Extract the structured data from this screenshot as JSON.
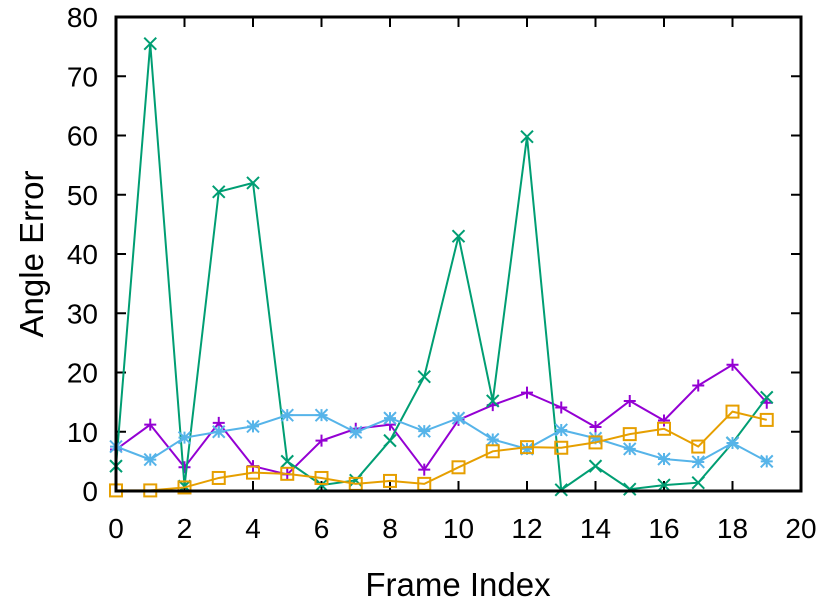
{
  "chart_data": {
    "type": "line",
    "title": "",
    "xlabel": "Frame Index",
    "ylabel": "Angle Error",
    "xlim": [
      0,
      20
    ],
    "ylim": [
      0,
      80
    ],
    "xticks": [
      0,
      2,
      4,
      6,
      8,
      10,
      12,
      14,
      16,
      18,
      20
    ],
    "yticks": [
      0,
      10,
      20,
      30,
      40,
      50,
      60,
      70,
      80
    ],
    "grid": false,
    "legend": "none",
    "x": [
      0,
      1,
      2,
      3,
      4,
      5,
      6,
      7,
      8,
      9,
      10,
      11,
      12,
      13,
      14,
      15,
      16,
      17,
      18,
      19
    ],
    "series": [
      {
        "color": "#9400d3",
        "marker": "plus",
        "values": [
          7.0,
          11.2,
          4.0,
          11.5,
          4.2,
          2.8,
          8.5,
          10.5,
          11.2,
          3.6,
          12.0,
          14.5,
          16.6,
          14.1,
          10.8,
          15.2,
          11.9,
          17.8,
          21.3,
          14.9
        ]
      },
      {
        "color": "#009e73",
        "marker": "cross",
        "values": [
          4.2,
          75.5,
          0.8,
          50.5,
          52.0,
          5.0,
          1.0,
          1.8,
          8.5,
          19.3,
          43.0,
          15.2,
          59.8,
          0.2,
          4.2,
          0.3,
          1.0,
          1.4,
          8.1,
          15.8
        ]
      },
      {
        "color": "#56b4e9",
        "marker": "star",
        "values": [
          7.5,
          5.3,
          9.0,
          10.0,
          10.9,
          12.8,
          12.8,
          9.9,
          12.3,
          10.1,
          12.3,
          8.7,
          7.1,
          10.3,
          8.9,
          7.1,
          5.4,
          4.9,
          8.1,
          5.0
        ]
      },
      {
        "color": "#e69f00",
        "marker": "square",
        "values": [
          0.1,
          0.1,
          0.6,
          2.2,
          3.1,
          2.9,
          2.2,
          1.2,
          1.7,
          1.2,
          4.0,
          6.7,
          7.4,
          7.3,
          8.2,
          9.6,
          10.5,
          7.5,
          13.4,
          12.0
        ]
      }
    ]
  }
}
